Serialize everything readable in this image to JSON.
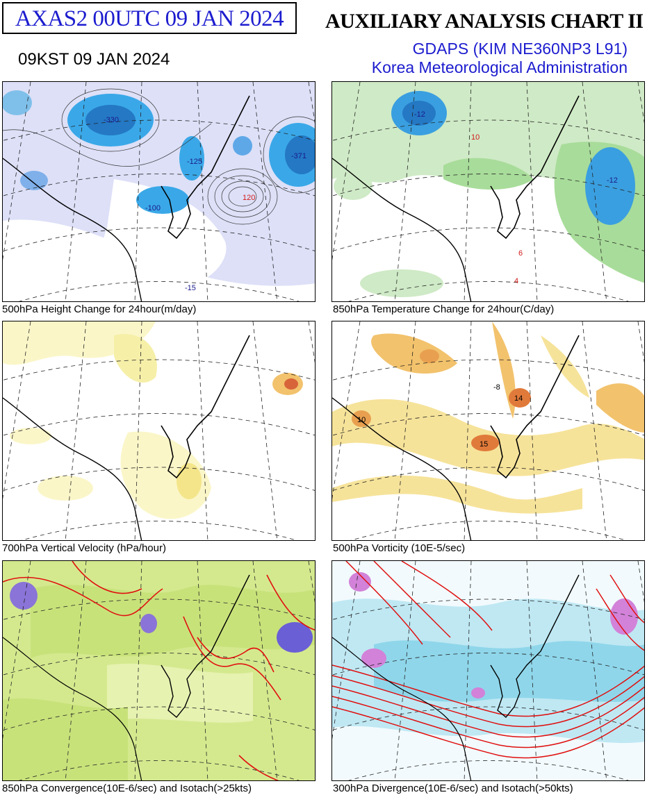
{
  "header": {
    "product_code": "AXAS2  00UTC 09 JAN 2024",
    "chart_title": "AUXILIARY ANALYSIS CHART II",
    "local_time": "09KST 09 JAN 2024",
    "model": "GDAPS (KIM NE360NP3 L91)",
    "agency": "Korea Meteorological Administration"
  },
  "colors": {
    "title_blue": "#1c1ccf",
    "height_change_fall": "#3aa8e8",
    "height_change_shade": "#c9cdf2",
    "temp_change_fall": "#3a9fe0",
    "temp_change_shade": "#a8dc9a",
    "vertical_velocity_shade": "#f6efa8",
    "vorticity_shade": "#f2b85a",
    "convergence_shade": "#c8e27a",
    "divergence_shade": "#8fd6ea",
    "isotach_line": "#e01010"
  },
  "panels": [
    {
      "id": "height-change",
      "caption": "500hPa Height Change for 24hour(m/day)",
      "labels": [
        "-330",
        "-100",
        "-125",
        "-371",
        "120",
        "-15"
      ]
    },
    {
      "id": "temperature-change",
      "caption": "850hPa Temperature Change for 24hour(C/day)",
      "labels": [
        "-12",
        "10",
        "-12",
        "6",
        "4"
      ]
    },
    {
      "id": "vertical-velocity",
      "caption": "700hPa Vertical Velocity (hPa/hour)",
      "labels": []
    },
    {
      "id": "vorticity",
      "caption": "500hPa Vorticity (10E-5/sec)",
      "labels": [
        "-8",
        "14",
        "15",
        "10"
      ]
    },
    {
      "id": "convergence",
      "caption": "850hPa Convergence(10E-6/sec) and Isotach(>25kts)",
      "labels": []
    },
    {
      "id": "divergence",
      "caption": "300hPa Divergence(10E-6/sec) and Isotach(>50kts)",
      "labels": []
    }
  ]
}
